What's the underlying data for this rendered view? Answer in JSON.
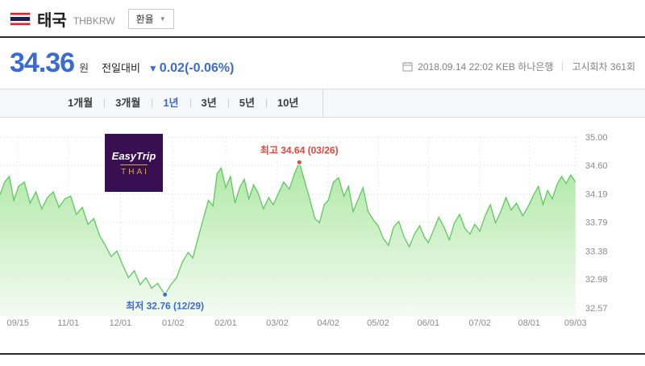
{
  "header": {
    "country": "태국",
    "pair_code": "THBKRW",
    "rate_button_label": "환율"
  },
  "quote": {
    "price": "34.36",
    "currency_unit": "원",
    "change_label": "전일대비",
    "change_arrow": "▼",
    "change_value": "0.02",
    "change_percent": "(-0.06%)",
    "source_info": "2018.09.14 22:02 KEB 하나은행",
    "announcement_round": "고시회차 361회"
  },
  "tabs": {
    "items": [
      {
        "label": "1개월",
        "selected": false
      },
      {
        "label": "3개월",
        "selected": false
      },
      {
        "label": "1년",
        "selected": true
      },
      {
        "label": "3년",
        "selected": false
      },
      {
        "label": "5년",
        "selected": false
      },
      {
        "label": "10년",
        "selected": false
      }
    ]
  },
  "watermark": {
    "line1": "EasyTrip",
    "line2": "THAI"
  },
  "colors": {
    "price_down_blue": "#3a6bd0",
    "high_red": "#e5453d",
    "low_blue": "#3a6bd0",
    "line_green": "#5fc85f",
    "fill_top": "#aae6a0",
    "fill_bottom": "#f2fbf0"
  },
  "chart_data": {
    "type": "area",
    "ylabel": "",
    "xlabel": "",
    "ylim": [
      32.57,
      35.0
    ],
    "grid": true,
    "y_ticks": [
      {
        "label": "35.00",
        "value": 35.0
      },
      {
        "label": "34.60",
        "value": 34.6
      },
      {
        "label": "34.19",
        "value": 34.19
      },
      {
        "label": "33.79",
        "value": 33.79
      },
      {
        "label": "33.38",
        "value": 33.38
      },
      {
        "label": "32.98",
        "value": 32.98
      },
      {
        "label": "32.57",
        "value": 32.57
      }
    ],
    "x_ticks": [
      {
        "label": "09/15",
        "pos": 0.031
      },
      {
        "label": "11/01",
        "pos": 0.118
      },
      {
        "label": "12/01",
        "pos": 0.208
      },
      {
        "label": "01/02",
        "pos": 0.299
      },
      {
        "label": "02/01",
        "pos": 0.39
      },
      {
        "label": "03/02",
        "pos": 0.479
      },
      {
        "label": "04/02",
        "pos": 0.567
      },
      {
        "label": "05/02",
        "pos": 0.653
      },
      {
        "label": "06/01",
        "pos": 0.74
      },
      {
        "label": "07/02",
        "pos": 0.829
      },
      {
        "label": "08/01",
        "pos": 0.914
      },
      {
        "label": "09/03",
        "pos": 0.994
      }
    ],
    "points": [
      [
        0.0,
        34.18
      ],
      [
        0.008,
        34.36
      ],
      [
        0.016,
        34.44
      ],
      [
        0.024,
        34.1
      ],
      [
        0.032,
        34.3
      ],
      [
        0.042,
        34.36
      ],
      [
        0.052,
        34.06
      ],
      [
        0.062,
        34.22
      ],
      [
        0.072,
        33.98
      ],
      [
        0.082,
        34.14
      ],
      [
        0.092,
        34.22
      ],
      [
        0.102,
        34.0
      ],
      [
        0.112,
        34.12
      ],
      [
        0.122,
        34.16
      ],
      [
        0.132,
        33.9
      ],
      [
        0.142,
        34.0
      ],
      [
        0.152,
        33.76
      ],
      [
        0.162,
        33.84
      ],
      [
        0.172,
        33.6
      ],
      [
        0.182,
        33.46
      ],
      [
        0.192,
        33.3
      ],
      [
        0.202,
        33.38
      ],
      [
        0.212,
        33.18
      ],
      [
        0.222,
        33.0
      ],
      [
        0.232,
        33.1
      ],
      [
        0.242,
        32.9
      ],
      [
        0.252,
        33.0
      ],
      [
        0.262,
        32.85
      ],
      [
        0.272,
        32.92
      ],
      [
        0.285,
        32.76
      ],
      [
        0.295,
        32.9
      ],
      [
        0.305,
        33.0
      ],
      [
        0.315,
        33.22
      ],
      [
        0.325,
        33.36
      ],
      [
        0.333,
        33.28
      ],
      [
        0.342,
        33.56
      ],
      [
        0.352,
        33.86
      ],
      [
        0.36,
        34.1
      ],
      [
        0.368,
        34.02
      ],
      [
        0.375,
        34.48
      ],
      [
        0.382,
        34.56
      ],
      [
        0.39,
        34.28
      ],
      [
        0.398,
        34.44
      ],
      [
        0.406,
        34.06
      ],
      [
        0.414,
        34.28
      ],
      [
        0.422,
        34.4
      ],
      [
        0.43,
        34.12
      ],
      [
        0.438,
        34.32
      ],
      [
        0.446,
        34.2
      ],
      [
        0.455,
        33.98
      ],
      [
        0.464,
        34.14
      ],
      [
        0.472,
        34.04
      ],
      [
        0.48,
        34.18
      ],
      [
        0.49,
        34.36
      ],
      [
        0.5,
        34.26
      ],
      [
        0.508,
        34.46
      ],
      [
        0.517,
        34.64
      ],
      [
        0.526,
        34.38
      ],
      [
        0.535,
        34.12
      ],
      [
        0.544,
        33.84
      ],
      [
        0.552,
        33.78
      ],
      [
        0.56,
        34.04
      ],
      [
        0.567,
        34.1
      ],
      [
        0.576,
        34.36
      ],
      [
        0.585,
        34.42
      ],
      [
        0.594,
        34.16
      ],
      [
        0.602,
        34.3
      ],
      [
        0.61,
        33.94
      ],
      [
        0.618,
        34.1
      ],
      [
        0.627,
        34.28
      ],
      [
        0.636,
        33.94
      ],
      [
        0.645,
        33.82
      ],
      [
        0.653,
        33.74
      ],
      [
        0.662,
        33.56
      ],
      [
        0.671,
        33.46
      ],
      [
        0.68,
        33.72
      ],
      [
        0.689,
        33.8
      ],
      [
        0.698,
        33.58
      ],
      [
        0.707,
        33.44
      ],
      [
        0.716,
        33.62
      ],
      [
        0.725,
        33.74
      ],
      [
        0.733,
        33.58
      ],
      [
        0.74,
        33.5
      ],
      [
        0.749,
        33.68
      ],
      [
        0.758,
        33.86
      ],
      [
        0.767,
        33.72
      ],
      [
        0.776,
        33.54
      ],
      [
        0.785,
        33.78
      ],
      [
        0.794,
        33.9
      ],
      [
        0.803,
        33.7
      ],
      [
        0.812,
        33.62
      ],
      [
        0.82,
        33.76
      ],
      [
        0.829,
        33.66
      ],
      [
        0.838,
        33.88
      ],
      [
        0.847,
        34.04
      ],
      [
        0.856,
        33.78
      ],
      [
        0.865,
        33.94
      ],
      [
        0.874,
        34.14
      ],
      [
        0.883,
        33.96
      ],
      [
        0.892,
        34.06
      ],
      [
        0.903,
        33.88
      ],
      [
        0.914,
        34.04
      ],
      [
        0.922,
        34.18
      ],
      [
        0.93,
        34.3
      ],
      [
        0.938,
        34.04
      ],
      [
        0.946,
        34.24
      ],
      [
        0.954,
        34.12
      ],
      [
        0.962,
        34.32
      ],
      [
        0.97,
        34.44
      ],
      [
        0.978,
        34.34
      ],
      [
        0.986,
        34.46
      ],
      [
        0.994,
        34.36
      ]
    ],
    "annotations": {
      "high": {
        "label": "최고 34.64 (03/26)",
        "value": 34.64,
        "pos": 0.517,
        "date": "03/26",
        "color": "#e5453d"
      },
      "low": {
        "label": "최저 32.76 (12/29)",
        "value": 32.76,
        "pos": 0.285,
        "date": "12/29",
        "color": "#3a6bd0"
      }
    },
    "line_color": "#5fc85f",
    "fill_top": "#aae6a0",
    "fill_bottom": "#f2fbf0",
    "legend": "none"
  }
}
